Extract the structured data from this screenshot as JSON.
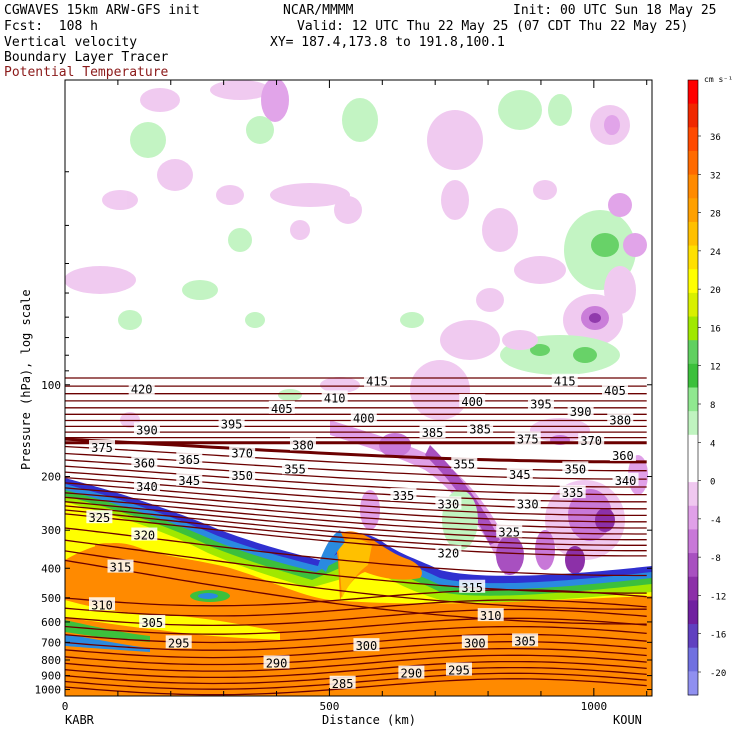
{
  "header": {
    "model": "CGWAVES 15km ARW-GFS init",
    "org": "NCAR/MMMM",
    "init": "Init: 00 UTC Sun 18 May 25",
    "fcst": "Fcst:  108 h",
    "valid": "Valid: 12 UTC Thu 22 May 25 (07 CDT Thu 22 May 25)",
    "field1": "Vertical velocity",
    "field2": "Boundary Layer Tracer",
    "field3": "Potential Temperature",
    "xy": "XY= 187.4,173.8 to 191.8,100.1"
  },
  "colors": {
    "theta": "#6b0000",
    "field3_text": "#8b1a1a"
  },
  "chart_data": {
    "type": "cross-section",
    "title": "Vertical velocity, Boundary Layer Tracer, Potential Temperature",
    "xlabel": "Distance (km)",
    "ylabel": "Pressure (hPa), log scale",
    "x_ticks": [
      0,
      500,
      1000
    ],
    "xlim": [
      0,
      1110
    ],
    "y_ticks": [
      100,
      200,
      300,
      400,
      500,
      600,
      700,
      800,
      900,
      1000
    ],
    "ylim": [
      1050,
      10
    ],
    "y_scale": "log",
    "endpoints": {
      "left": "KABR",
      "right": "KOUN"
    },
    "colorbar": {
      "unit": "cm s⁻¹",
      "tick_labels": [
        36,
        32,
        28,
        24,
        20,
        16,
        12,
        8,
        4,
        0,
        -4,
        -8,
        -12,
        -16,
        -20
      ],
      "colors": [
        "#ff0000",
        "#f02800",
        "#ff4a00",
        "#ff6a00",
        "#ff8a00",
        "#ffa000",
        "#ffc000",
        "#ffe000",
        "#ffff00",
        "#d8f000",
        "#a0e800",
        "#60d060",
        "#3cc03c",
        "#90e890",
        "#c0f4c0",
        "#ffffff",
        "#ffffff",
        "#f0c8f0",
        "#e0a0e8",
        "#c878d8",
        "#a850c0",
        "#8c30a8",
        "#7020a0",
        "#6040c0",
        "#7070e0",
        "#9090f0"
      ]
    },
    "theta_labels": [
      {
        "t": "420",
        "x": 145,
        "p": 103
      },
      {
        "t": "415",
        "x": 590,
        "p": 97
      },
      {
        "t": "415",
        "x": 945,
        "p": 97
      },
      {
        "t": "410",
        "x": 510,
        "p": 110
      },
      {
        "t": "405",
        "x": 410,
        "p": 119
      },
      {
        "t": "405",
        "x": 1040,
        "p": 104
      },
      {
        "t": "400",
        "x": 565,
        "p": 128
      },
      {
        "t": "400",
        "x": 770,
        "p": 113
      },
      {
        "t": "395",
        "x": 315,
        "p": 134
      },
      {
        "t": "395",
        "x": 900,
        "p": 115
      },
      {
        "t": "390",
        "x": 155,
        "p": 140
      },
      {
        "t": "390",
        "x": 975,
        "p": 122
      },
      {
        "t": "385",
        "x": 695,
        "p": 143
      },
      {
        "t": "385",
        "x": 785,
        "p": 139
      },
      {
        "t": "380",
        "x": 1050,
        "p": 130
      },
      {
        "t": "380",
        "x": 450,
        "p": 157
      },
      {
        "t": "375",
        "x": 70,
        "p": 160
      },
      {
        "t": "375",
        "x": 875,
        "p": 150
      },
      {
        "t": "370",
        "x": 995,
        "p": 152
      },
      {
        "t": "370",
        "x": 335,
        "p": 167
      },
      {
        "t": "365",
        "x": 235,
        "p": 175
      },
      {
        "t": "360",
        "x": 150,
        "p": 180
      },
      {
        "t": "360",
        "x": 1055,
        "p": 170
      },
      {
        "t": "355",
        "x": 435,
        "p": 188
      },
      {
        "t": "355",
        "x": 755,
        "p": 181
      },
      {
        "t": "350",
        "x": 335,
        "p": 198
      },
      {
        "t": "350",
        "x": 965,
        "p": 188
      },
      {
        "t": "345",
        "x": 235,
        "p": 205
      },
      {
        "t": "345",
        "x": 860,
        "p": 196
      },
      {
        "t": "340",
        "x": 155,
        "p": 215
      },
      {
        "t": "340",
        "x": 1060,
        "p": 205
      },
      {
        "t": "335",
        "x": 640,
        "p": 230
      },
      {
        "t": "335",
        "x": 960,
        "p": 225
      },
      {
        "t": "330",
        "x": 725,
        "p": 245
      },
      {
        "t": "330",
        "x": 875,
        "p": 245
      },
      {
        "t": "325",
        "x": 65,
        "p": 272
      },
      {
        "t": "325",
        "x": 840,
        "p": 303
      },
      {
        "t": "320",
        "x": 150,
        "p": 310
      },
      {
        "t": "320",
        "x": 725,
        "p": 355
      },
      {
        "t": "315",
        "x": 105,
        "p": 395
      },
      {
        "t": "315",
        "x": 770,
        "p": 460
      },
      {
        "t": "310",
        "x": 70,
        "p": 525
      },
      {
        "t": "310",
        "x": 805,
        "p": 570
      },
      {
        "t": "305",
        "x": 165,
        "p": 600
      },
      {
        "t": "305",
        "x": 870,
        "p": 690
      },
      {
        "t": "300",
        "x": 570,
        "p": 715
      },
      {
        "t": "300",
        "x": 775,
        "p": 700
      },
      {
        "t": "295",
        "x": 215,
        "p": 700
      },
      {
        "t": "295",
        "x": 745,
        "p": 860
      },
      {
        "t": "290",
        "x": 400,
        "p": 815
      },
      {
        "t": "290",
        "x": 655,
        "p": 880
      },
      {
        "t": "285",
        "x": 525,
        "p": 950
      }
    ]
  }
}
